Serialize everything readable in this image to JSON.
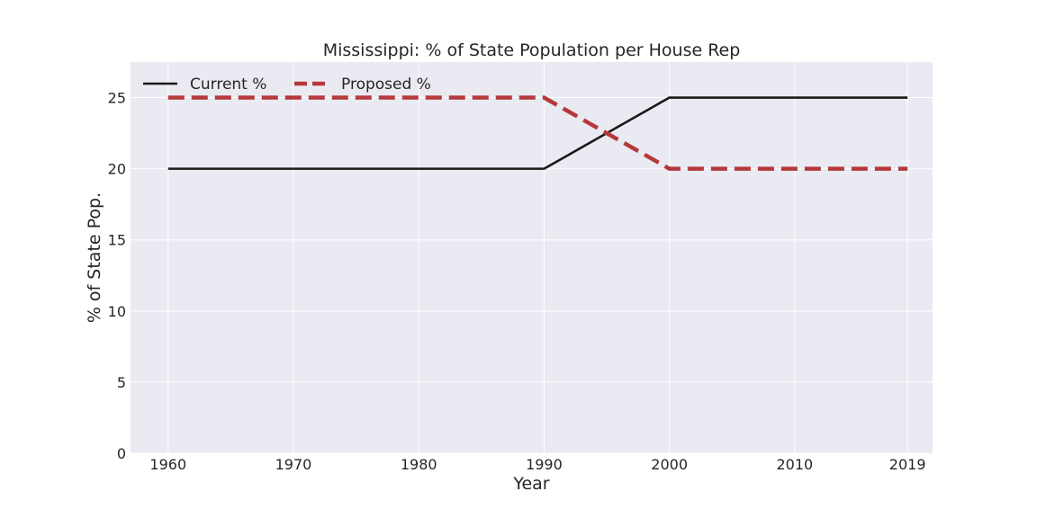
{
  "chart_data": {
    "type": "line",
    "title": "Mississippi: % of State Population per House Rep",
    "xlabel": "Year",
    "ylabel": "% of State Pop.",
    "x": [
      1960,
      1970,
      1980,
      1990,
      2000,
      2010,
      2019
    ],
    "x_ticks": [
      "1960",
      "1970",
      "1980",
      "1990",
      "2000",
      "2010",
      "2019"
    ],
    "y_ticks": [
      "0",
      "5",
      "10",
      "15",
      "20",
      "25"
    ],
    "xlim": [
      1957,
      2021
    ],
    "ylim": [
      0,
      27.5
    ],
    "grid": true,
    "legend_position": "top-left",
    "series": [
      {
        "name": "Current %",
        "values": [
          20,
          20,
          20,
          20,
          25,
          25,
          25
        ],
        "color": "#1a1a1a",
        "style": "solid"
      },
      {
        "name": "Proposed %",
        "values": [
          25,
          25,
          25,
          25,
          20,
          20,
          20
        ],
        "color": "#b5383a",
        "style": "dashed"
      }
    ],
    "background": "#eaeaf2"
  }
}
